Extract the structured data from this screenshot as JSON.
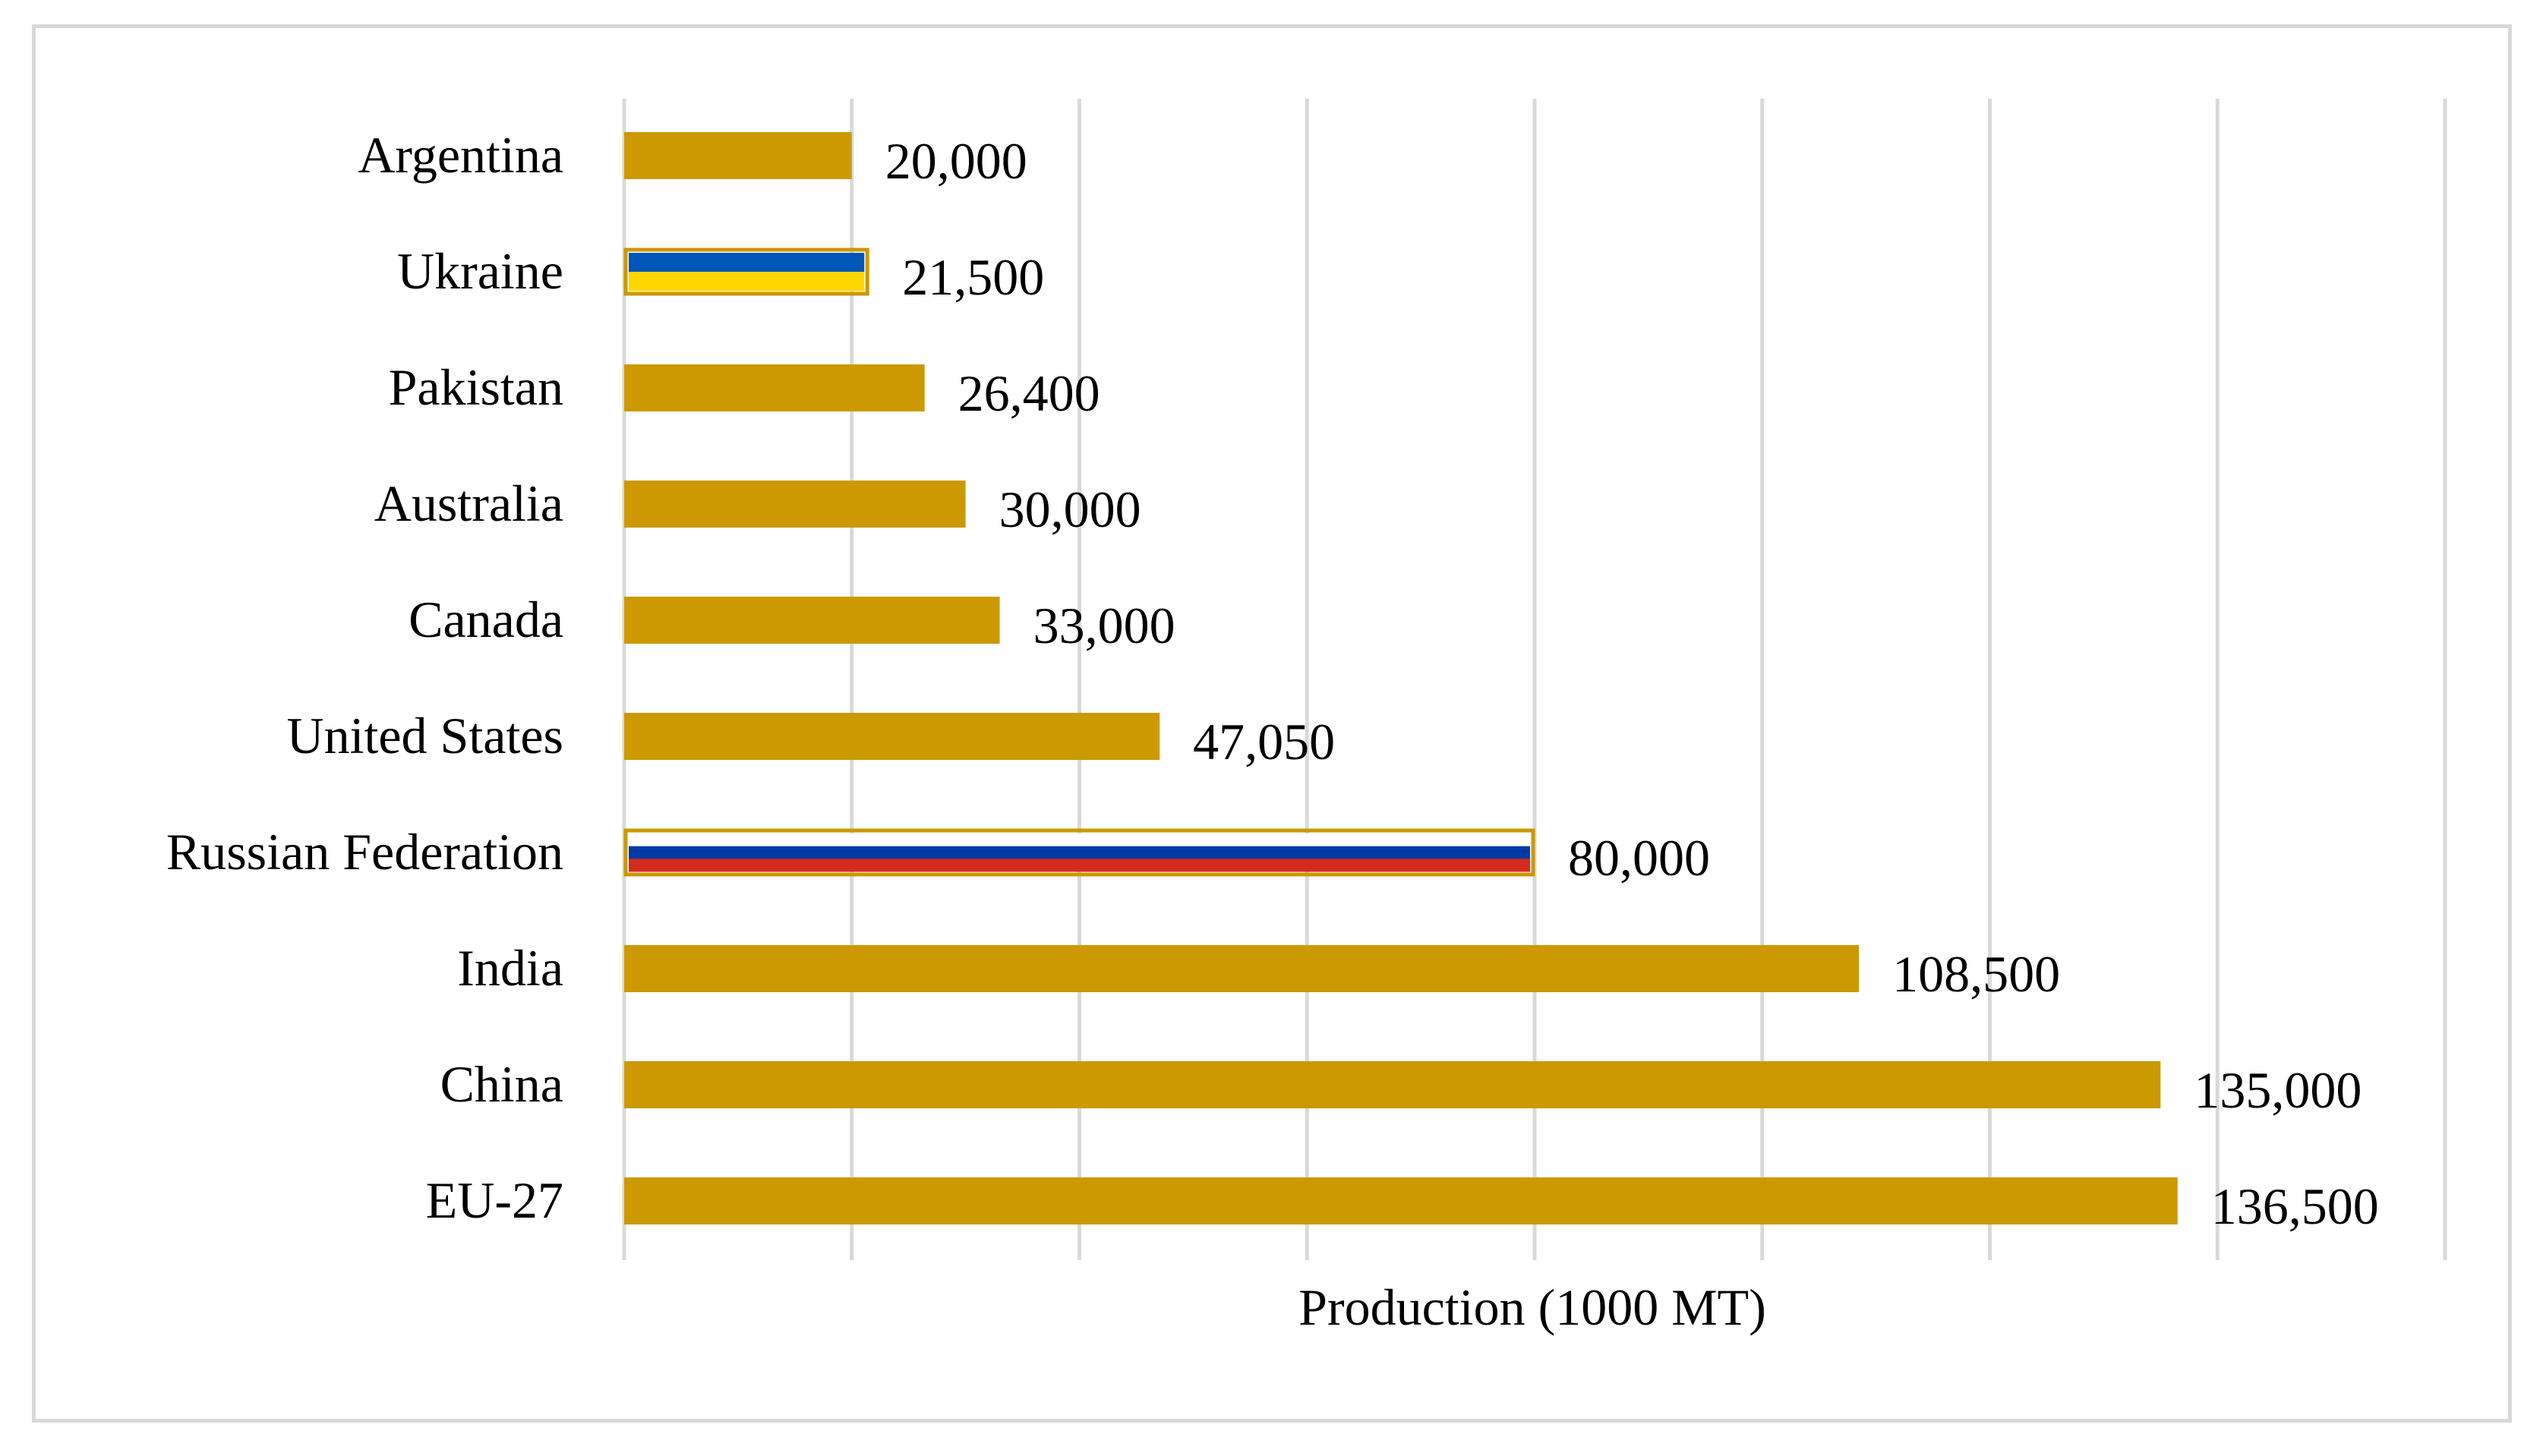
{
  "chart_data": {
    "type": "bar",
    "orientation": "horizontal",
    "title": "",
    "xlabel": "Production (1000 MT)",
    "ylabel": "",
    "xlim": [
      0,
      160000
    ],
    "grid": true,
    "legend": "none",
    "bar_color": "#CC9900",
    "categories": [
      "Argentina",
      "Ukraine",
      "Pakistan",
      "Australia",
      "Canada",
      "United States",
      "Russian Federation",
      "India",
      "China",
      "EU-27"
    ],
    "values": [
      20000,
      21500,
      26400,
      30000,
      33000,
      47050,
      80000,
      108500,
      135000,
      136500
    ],
    "data_labels": [
      "20,000",
      "21,500",
      "26,400",
      "30,000",
      "33,000",
      "47,050",
      "80,000",
      "108,500",
      "135,000",
      "136,500"
    ],
    "flag_bars": {
      "Ukraine": [
        "#0057B7",
        "#FFD700"
      ],
      "Russian Federation": [
        "#FFFFFF",
        "#0039A6",
        "#D52B1E"
      ]
    }
  }
}
